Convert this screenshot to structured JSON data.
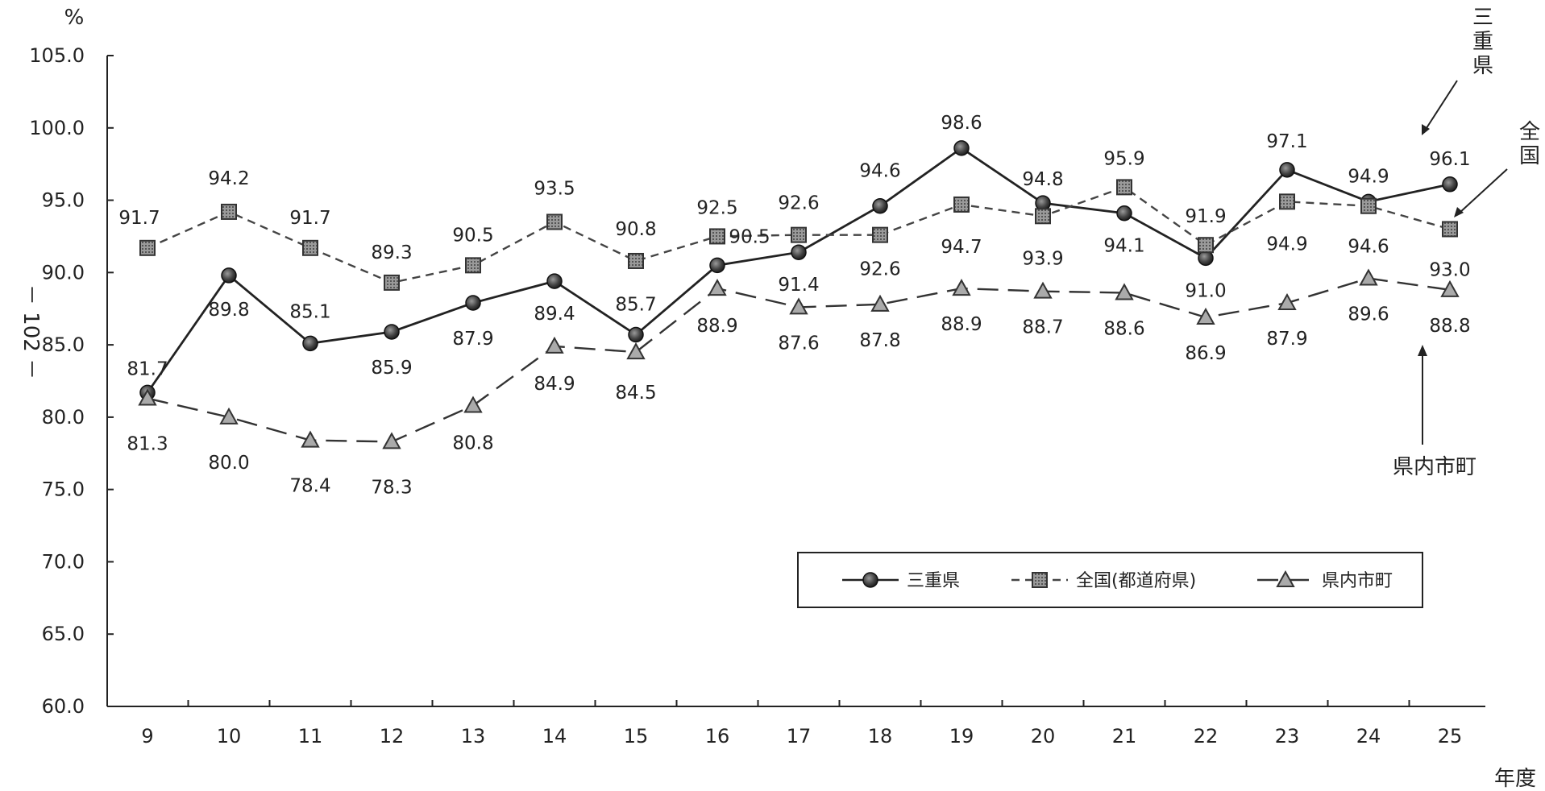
{
  "chart_data": {
    "type": "line",
    "y_unit": "%",
    "xlabel": "年度",
    "page_mark": "－ 102 －",
    "categories": [
      "9",
      "10",
      "11",
      "12",
      "13",
      "14",
      "15",
      "16",
      "17",
      "18",
      "19",
      "20",
      "21",
      "22",
      "23",
      "24",
      "25"
    ],
    "ylim": [
      60.0,
      105.0
    ],
    "yticks": [
      "60.0",
      "65.0",
      "70.0",
      "75.0",
      "80.0",
      "85.0",
      "90.0",
      "95.0",
      "100.0",
      "105.0"
    ],
    "grid": false,
    "legend_position": "bottom-right",
    "series": [
      {
        "name": "三重県",
        "marker": "circle",
        "line": "solid",
        "color": "#222222",
        "values": [
          81.7,
          89.8,
          85.1,
          85.9,
          87.9,
          89.4,
          85.7,
          90.5,
          91.4,
          94.6,
          98.6,
          94.8,
          94.1,
          91.0,
          97.1,
          94.9,
          96.1
        ]
      },
      {
        "name": "全国(都道府県)",
        "marker": "square",
        "line": "short-dash",
        "color": "#444444",
        "values": [
          91.7,
          94.2,
          91.7,
          89.3,
          90.5,
          93.5,
          90.8,
          92.5,
          92.6,
          92.6,
          94.7,
          93.9,
          95.9,
          91.9,
          94.9,
          94.6,
          93.0
        ]
      },
      {
        "name": "県内市町",
        "marker": "triangle",
        "line": "long-dash",
        "color": "#333333",
        "values": [
          81.3,
          80.0,
          78.4,
          78.3,
          80.8,
          84.9,
          84.5,
          88.9,
          87.6,
          87.8,
          88.9,
          88.7,
          88.6,
          86.9,
          87.9,
          89.6,
          88.8
        ]
      }
    ],
    "annotations": [
      {
        "text": "三重県",
        "target_series": 0
      },
      {
        "text": "全国",
        "target_series": 1
      },
      {
        "text": "県内市町",
        "target_series": 2
      }
    ]
  }
}
